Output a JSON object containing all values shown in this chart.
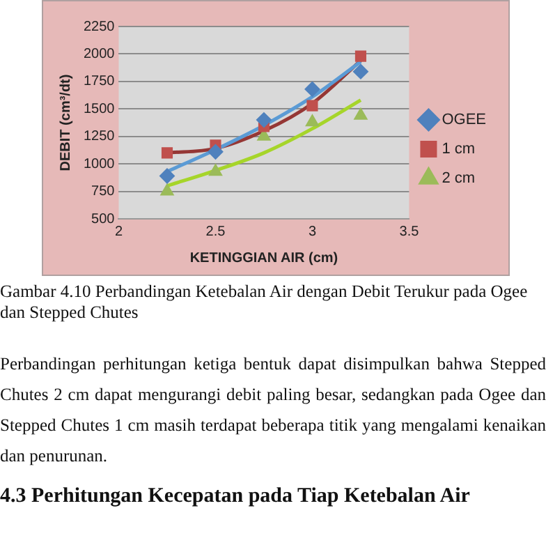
{
  "chart_data": {
    "type": "scatter",
    "xlabel": "KETINGGIAN AIR (cm)",
    "ylabel": "DEBIT (cm³/dt)",
    "xlim": [
      2,
      3.5
    ],
    "xticks": [
      2,
      2.5,
      3,
      3.5
    ],
    "ylim": [
      500,
      2250
    ],
    "yticks": [
      500,
      750,
      1000,
      1250,
      1500,
      1750,
      2000,
      2250
    ],
    "grid": "y",
    "legend": "right",
    "series": [
      {
        "name": "OGEE",
        "color": "#4f81bd",
        "marker": "diamond",
        "x": [
          2.25,
          2.5,
          2.75,
          3,
          3.25
        ],
        "values": [
          890,
          1110,
          1400,
          1680,
          1840
        ]
      },
      {
        "name": "1 cm",
        "color": "#c0504d",
        "marker": "square",
        "x": [
          2.25,
          2.5,
          2.75,
          3,
          3.25
        ],
        "values": [
          1100,
          1170,
          1340,
          1530,
          1980
        ]
      },
      {
        "name": "2 cm",
        "color": "#9bbb59",
        "marker": "triangle",
        "x": [
          2.25,
          2.5,
          2.75,
          3,
          3.25
        ],
        "values": [
          750,
          930,
          1250,
          1380,
          1440
        ]
      },
      {
        "type": "line",
        "color": "#5b9bd5",
        "marker": "none",
        "x": [
          2.25,
          2.5,
          2.75,
          3,
          3.25
        ],
        "values": [
          930,
          1130,
          1350,
          1610,
          1930
        ]
      },
      {
        "type": "line",
        "color": "#953735",
        "marker": "none",
        "x": [
          2.25,
          2.5,
          2.75,
          3,
          3.25
        ],
        "values": [
          1100,
          1140,
          1300,
          1550,
          1940
        ]
      },
      {
        "type": "line",
        "color": "#a6d52a",
        "marker": "none",
        "x": [
          2.25,
          2.5,
          2.75,
          3,
          3.25
        ],
        "values": [
          800,
          940,
          1100,
          1320,
          1580
        ]
      }
    ],
    "annotations": [
      "Gambar 4.10   Perbandingan Ketebalan Air dengan Debit Terukur pada Ogee dan Stepped Chutes",
      "Perbandingan perhitungan ketiga bentuk dapat disimpulkan bahwa Stepped Chutes 2 cm dapat mengurangi debit paling besar, sedangkan pada Ogee dan Stepped Chutes 1 cm masih terdapat beberapa titik yang mengalami kenaikan dan penurunan.",
      "4.3 Perhitungan Kecepatan pada Tiap Ketebalan Air"
    ]
  }
}
